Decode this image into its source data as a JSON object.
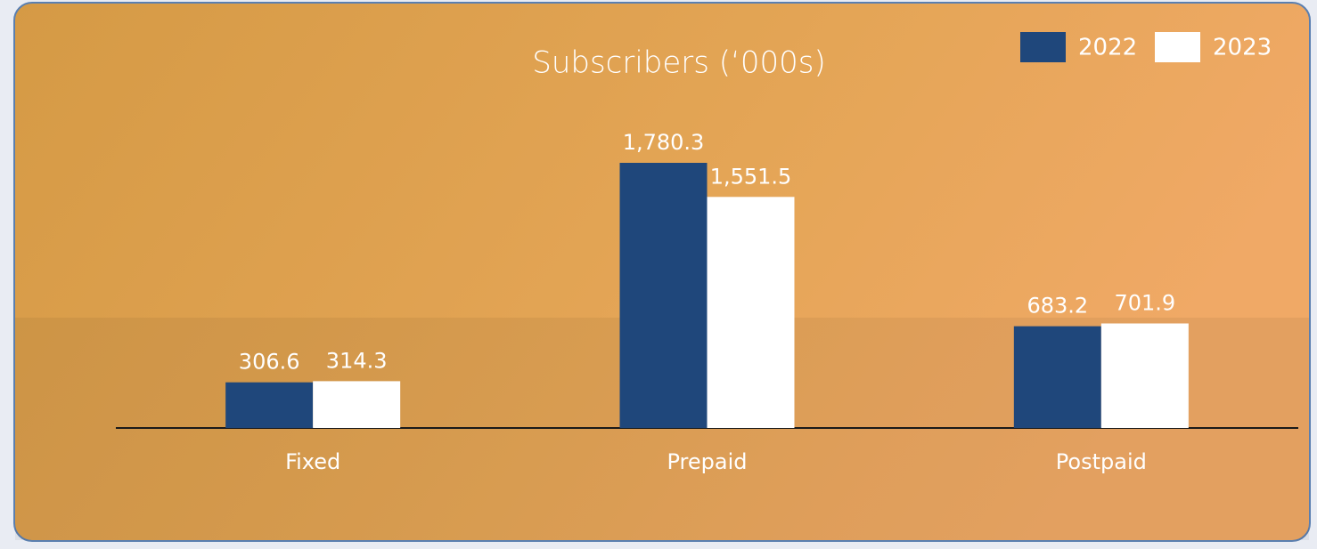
{
  "chart_data": {
    "type": "bar",
    "title": "Subscribers (‘000s)",
    "categories": [
      "Fixed",
      "Prepaid",
      "Postpaid"
    ],
    "series": [
      {
        "name": "2022",
        "color": "#1f477b",
        "values": [
          306.6,
          1780.3,
          683.2
        ],
        "value_labels": [
          "306.6",
          "1,780.3",
          "683.2"
        ]
      },
      {
        "name": "2023",
        "color": "#ffffff",
        "values": [
          314.3,
          1551.5,
          701.9
        ],
        "value_labels": [
          "314.3",
          "1,551.5",
          "701.9"
        ]
      }
    ],
    "legend": "top-right"
  }
}
